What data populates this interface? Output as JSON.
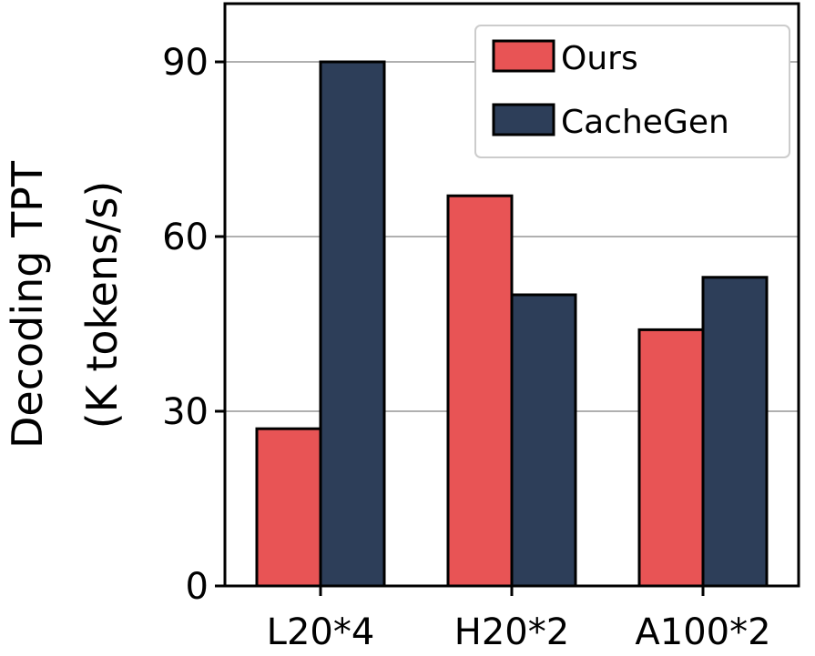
{
  "chart_data": {
    "type": "bar",
    "title": "",
    "xlabel": "",
    "ylabel_lines": [
      "Decoding TPT",
      "(K tokens/s)"
    ],
    "categories": [
      "L20*4",
      "H20*2",
      "A100*2"
    ],
    "series": [
      {
        "name": "Ours",
        "color": "#e85455",
        "values": [
          27,
          67,
          44
        ]
      },
      {
        "name": "CacheGen",
        "color": "#2d3e59",
        "values": [
          90,
          50,
          53
        ]
      }
    ],
    "ylim": [
      0,
      100
    ],
    "yticks": [
      0,
      30,
      60,
      90
    ],
    "grid": true,
    "legend": "top-right"
  }
}
